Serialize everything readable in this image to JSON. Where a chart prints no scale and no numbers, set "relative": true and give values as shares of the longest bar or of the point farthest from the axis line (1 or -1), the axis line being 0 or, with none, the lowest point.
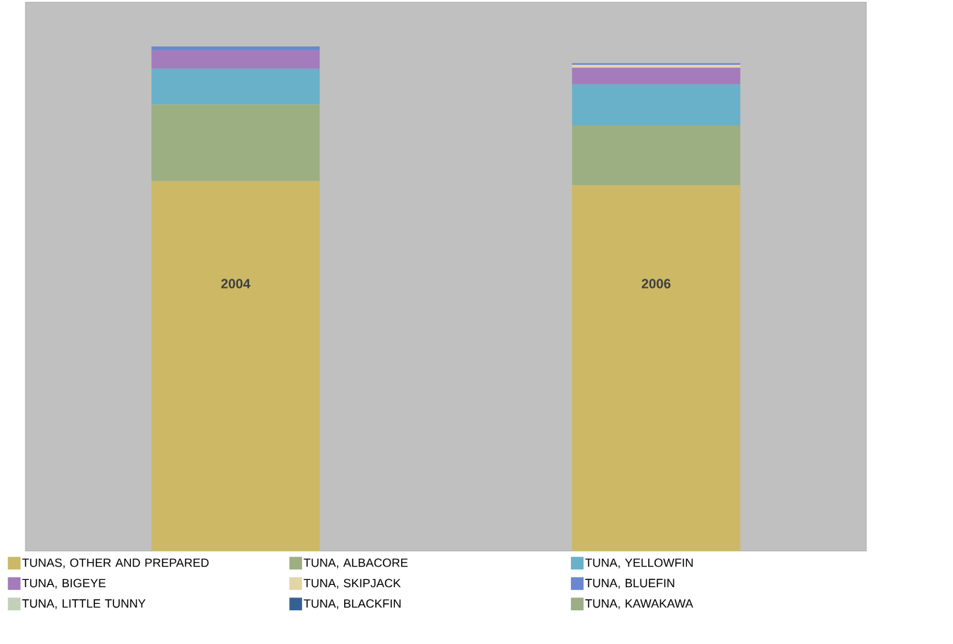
{
  "chart_data": {
    "type": "bar",
    "stacked": true,
    "relative": true,
    "legend": "bottom",
    "categories": [
      "2004",
      "2006"
    ],
    "series": [
      {
        "name": "TUNAS, OTHER AND PREPARED",
        "color": "#cdb866",
        "values": [
          0.733,
          0.725
        ]
      },
      {
        "name": "TUNA, ALBACORE",
        "color": "#9caf82",
        "values": [
          0.152,
          0.119
        ]
      },
      {
        "name": "TUNA, YELLOWFIN",
        "color": "#69b0c9",
        "values": [
          0.071,
          0.081
        ]
      },
      {
        "name": "TUNA, BIGEYE",
        "color": "#a47bbb",
        "values": [
          0.036,
          0.033
        ]
      },
      {
        "name": "TUNA, SKIPJACK",
        "color": "#e3d6a5",
        "values": [
          0,
          0.006
        ]
      },
      {
        "name": "TUNA, BLUEFIN",
        "color": "#6a87cf",
        "values": [
          0.008,
          0.003
        ]
      },
      {
        "name": "TUNA, LITTLE TUNNY",
        "color": "#c3d0b9",
        "values": [
          0,
          0
        ]
      },
      {
        "name": "TUNA, BLACKFIN",
        "color": "#376092",
        "values": [
          0,
          0
        ]
      },
      {
        "name": "TUNA, KAWAKAWA",
        "color": "#9bae86",
        "values": [
          0,
          0
        ]
      }
    ]
  }
}
